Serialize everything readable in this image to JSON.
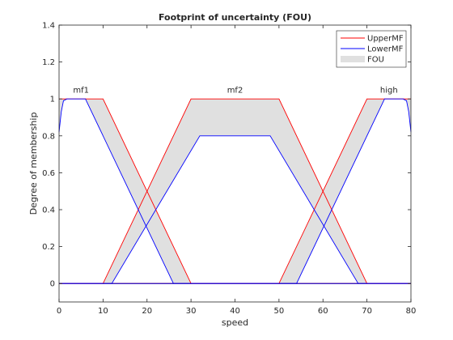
{
  "chart_data": {
    "type": "line",
    "title": "Footprint of uncertainty (FOU)",
    "xlabel": "speed",
    "ylabel": "Degree of membership",
    "xlim": [
      0,
      80
    ],
    "ylim": [
      -0.1,
      1.4
    ],
    "xticks": [
      "0",
      "10",
      "20",
      "30",
      "40",
      "50",
      "60",
      "70",
      "80"
    ],
    "yticks": [
      "0",
      "0.2",
      "0.4",
      "0.6",
      "0.8",
      "1",
      "1.2",
      "1.4"
    ],
    "grid": false,
    "legend_position": "top-right",
    "legend": [
      {
        "label": "UpperMF",
        "color": "#ff0000",
        "kind": "line"
      },
      {
        "label": "LowerMF",
        "color": "#0000ff",
        "kind": "line"
      },
      {
        "label": "FOU",
        "color": "#e0e0e0",
        "kind": "patch"
      }
    ],
    "colors": {
      "upper": "#ff0000",
      "lower": "#0000ff",
      "fou": "#e0e0e0"
    },
    "mf_labels": [
      {
        "text": "mf1",
        "x": 5,
        "y": 1.02
      },
      {
        "text": "mf2",
        "x": 40,
        "y": 1.02
      },
      {
        "text": "high",
        "x": 75,
        "y": 1.02
      }
    ],
    "series": [
      {
        "name": "UpperMF",
        "membership_functions": [
          [
            [
              0,
              1
            ],
            [
              10,
              1
            ],
            [
              30,
              0
            ],
            [
              80,
              0
            ]
          ],
          [
            [
              0,
              0
            ],
            [
              10,
              0
            ],
            [
              30,
              1
            ],
            [
              50,
              1
            ],
            [
              70,
              0
            ],
            [
              80,
              0
            ]
          ],
          [
            [
              0,
              0
            ],
            [
              50,
              0
            ],
            [
              70,
              1
            ],
            [
              80,
              1
            ]
          ]
        ]
      },
      {
        "name": "LowerMF",
        "membership_functions": [
          [
            [
              0,
              0.82
            ],
            [
              0.5,
              0.93
            ],
            [
              1,
              0.99
            ],
            [
              1.8,
              1
            ],
            [
              6,
              1
            ],
            [
              26,
              0
            ],
            [
              80,
              0
            ]
          ],
          [
            [
              0,
              0
            ],
            [
              12,
              0
            ],
            [
              32,
              0.8
            ],
            [
              48,
              0.8
            ],
            [
              68,
              0
            ],
            [
              80,
              0
            ]
          ],
          [
            [
              0,
              0
            ],
            [
              54,
              0
            ],
            [
              74,
              1
            ],
            [
              78.2,
              1
            ],
            [
              79,
              0.99
            ],
            [
              79.5,
              0.93
            ],
            [
              80,
              0.82
            ]
          ]
        ]
      }
    ]
  }
}
